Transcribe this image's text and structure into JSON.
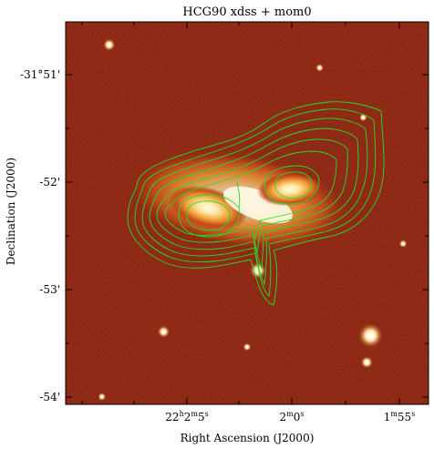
{
  "title": "HCG90 xdss + mom0",
  "xlabel": "Right Ascension (J2000)",
  "ylabel": "Declination (J2000)",
  "colors": {
    "image_dark": "#7a1408",
    "image_mid": "#a02a10",
    "galaxy_core": "#fff6d8",
    "contour": "#22e022",
    "frame": "#000000"
  },
  "chart_data": {
    "type": "image-with-contours",
    "title": "HCG90 xdss + mom0",
    "xlabel": "Right Ascension (J2000)",
    "ylabel": "Declination (J2000)",
    "xticks": [
      {
        "label_h": "22",
        "label_m": "2",
        "label_s": "5",
        "text": "22h2m5s"
      },
      {
        "label_m": "2",
        "label_s": "0",
        "text": "2m0s"
      },
      {
        "label_m": "1",
        "label_s": "55",
        "text": "1m55s"
      }
    ],
    "yticks": [
      "-31°51'",
      "-52'",
      "-53'",
      "-54'"
    ],
    "grid": false,
    "contours": {
      "color": "#22e022",
      "levels": 9
    }
  },
  "stars": [
    {
      "name": "star-1",
      "ra_frac": 0.12,
      "dec_frac": 0.06,
      "r": 3
    },
    {
      "name": "star-2",
      "ra_frac": 0.7,
      "dec_frac": 0.12,
      "r": 2
    },
    {
      "name": "star-3",
      "ra_frac": 0.82,
      "dec_frac": 0.25,
      "r": 2
    },
    {
      "name": "star-4",
      "ra_frac": 0.53,
      "dec_frac": 0.65,
      "r": 4
    },
    {
      "name": "star-5",
      "ra_frac": 0.27,
      "dec_frac": 0.81,
      "r": 3
    },
    {
      "name": "star-6",
      "ra_frac": 0.84,
      "dec_frac": 0.82,
      "r": 6
    },
    {
      "name": "star-7",
      "ra_frac": 0.83,
      "dec_frac": 0.89,
      "r": 3
    },
    {
      "name": "star-8",
      "ra_frac": 0.5,
      "dec_frac": 0.85,
      "r": 2
    },
    {
      "name": "star-9",
      "ra_frac": 0.1,
      "dec_frac": 0.98,
      "r": 2
    },
    {
      "name": "star-10",
      "ra_frac": 0.93,
      "dec_frac": 0.58,
      "r": 2
    }
  ]
}
